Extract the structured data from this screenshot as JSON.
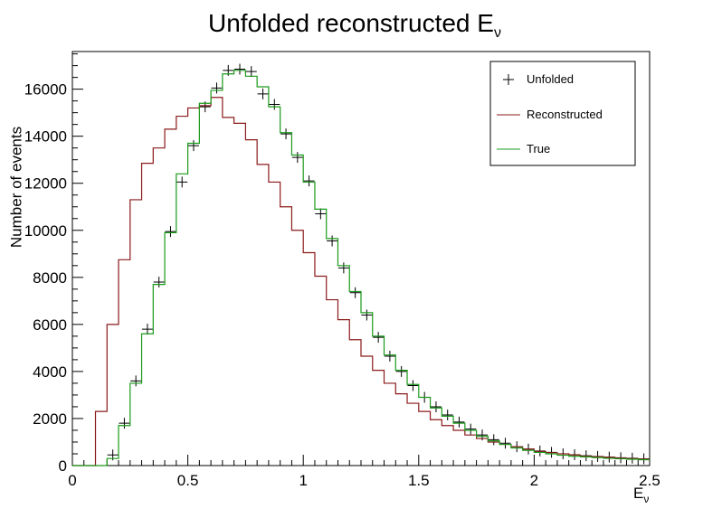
{
  "chart_data": {
    "type": "line",
    "title_main": "Unfolded reconstructed E",
    "title_sub": "ν",
    "xlabel_main": "E",
    "xlabel_sub": "ν",
    "ylabel": "Number of events",
    "xlim": [
      0,
      2.5
    ],
    "ylim": [
      0,
      17600
    ],
    "x_ticks": [
      0,
      0.5,
      1,
      1.5,
      2,
      2.5
    ],
    "x_tick_labels": [
      "0",
      "0.5",
      "1",
      "1.5",
      "2",
      "2.5"
    ],
    "y_ticks": [
      0,
      2000,
      4000,
      6000,
      8000,
      10000,
      12000,
      14000,
      16000
    ],
    "y_tick_labels": [
      "0",
      "2000",
      "4000",
      "6000",
      "8000",
      "10000",
      "12000",
      "14000",
      "16000"
    ],
    "grid": false,
    "legend_position": "top-right",
    "bin_width": 0.05,
    "bin_low_edges": [
      0.0,
      0.05,
      0.1,
      0.15,
      0.2,
      0.25,
      0.3,
      0.35,
      0.4,
      0.45,
      0.5,
      0.55,
      0.6,
      0.65,
      0.7,
      0.75,
      0.8,
      0.85,
      0.9,
      0.95,
      1.0,
      1.05,
      1.1,
      1.15,
      1.2,
      1.25,
      1.3,
      1.35,
      1.4,
      1.45,
      1.5,
      1.55,
      1.6,
      1.65,
      1.7,
      1.75,
      1.8,
      1.85,
      1.9,
      1.95,
      2.0,
      2.05,
      2.1,
      2.15,
      2.2,
      2.25,
      2.3,
      2.35,
      2.4,
      2.45
    ],
    "series": [
      {
        "name": "Unfolded",
        "style": "markers",
        "color": "#000000",
        "values": [
          0,
          0,
          0,
          450,
          1800,
          3600,
          5800,
          7800,
          9950,
          12050,
          13600,
          15250,
          16050,
          16800,
          16850,
          16750,
          15800,
          15350,
          14100,
          13100,
          12100,
          10700,
          9550,
          8400,
          7350,
          6400,
          5450,
          4650,
          4000,
          3400,
          2900,
          2500,
          2150,
          1850,
          1550,
          1300,
          1100,
          950,
          800,
          700,
          620,
          560,
          500,
          460,
          420,
          390,
          360,
          330,
          310,
          290
        ]
      },
      {
        "name": "Reconstructed",
        "style": "step",
        "color": "#8b1a1a",
        "values": [
          0,
          0,
          2300,
          6000,
          8750,
          11300,
          12850,
          13500,
          14300,
          14850,
          15200,
          15300,
          15650,
          14800,
          14550,
          13850,
          12800,
          12050,
          11000,
          10000,
          9050,
          8050,
          7050,
          6200,
          5350,
          4650,
          4050,
          3500,
          3050,
          2650,
          2300,
          1950,
          1700,
          1500,
          1300,
          1150,
          1000,
          900,
          800,
          700,
          600,
          550,
          500,
          450,
          400,
          380,
          350,
          320,
          300,
          280
        ]
      },
      {
        "name": "True",
        "style": "step",
        "color": "#1a9a1a",
        "values": [
          0,
          0,
          0,
          300,
          1700,
          3500,
          5600,
          7700,
          9900,
          12400,
          13700,
          15400,
          15950,
          16650,
          16800,
          16550,
          16100,
          15250,
          14150,
          13200,
          12050,
          10900,
          9650,
          8500,
          7400,
          6500,
          5500,
          4700,
          4050,
          3450,
          2900,
          2450,
          2100,
          1800,
          1500,
          1250,
          1050,
          900,
          750,
          650,
          560,
          500,
          440,
          400,
          370,
          340,
          310,
          290,
          270,
          250
        ]
      }
    ]
  }
}
